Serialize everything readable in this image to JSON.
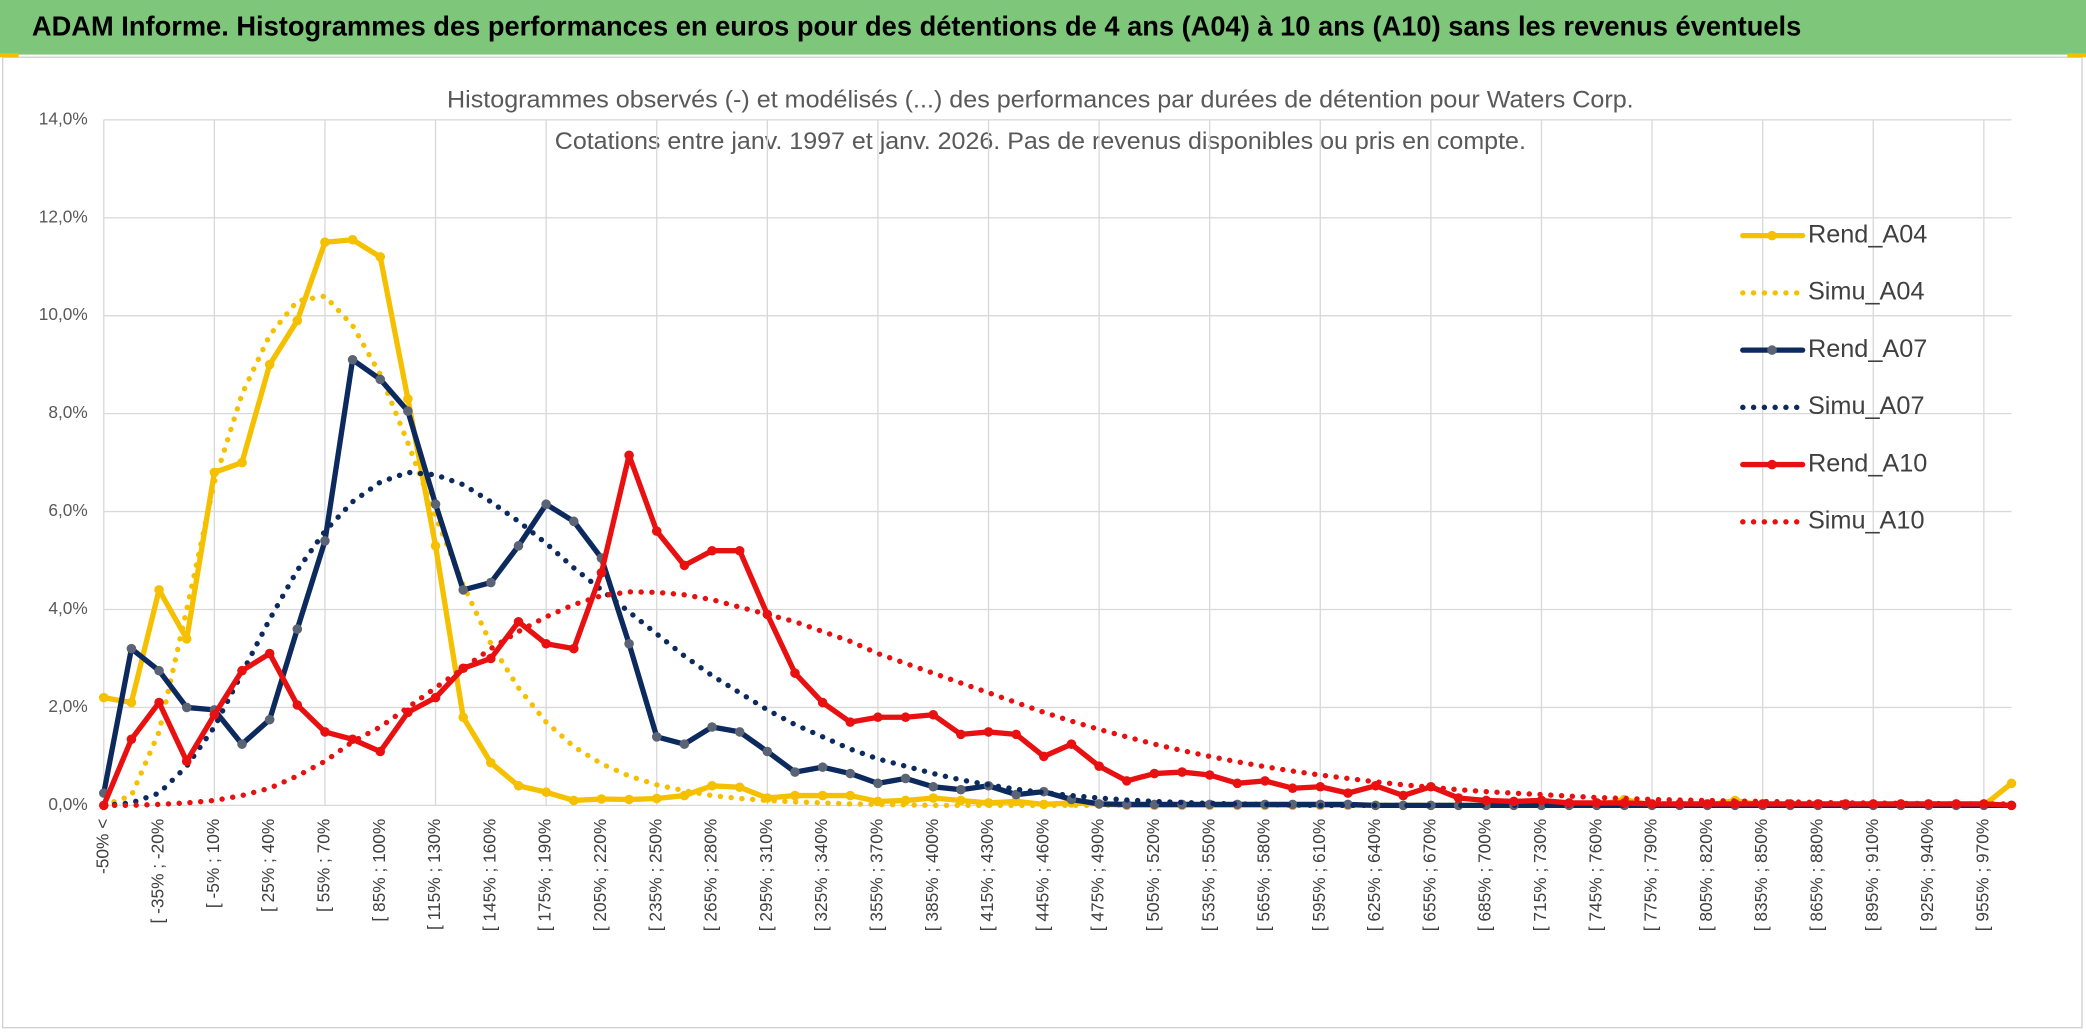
{
  "chart_data": {
    "type": "line",
    "banner": "ADAM Informe. Histogrammes des performances en euros pour des détentions de 4 ans (A04) à 10 ans (A10) sans les revenus éventuels",
    "title": "Histogrammes observés (-) et modélisés (...) des performances par durées de détention pour Waters Corp.",
    "subtitle": "Cotations entre janv. 1997 et janv. 2026. Pas de revenus disponibles ou pris en compte.",
    "categories": [
      "-50% <",
      null,
      "[ -35% ; -20%",
      null,
      "[ -5% ; 10%",
      null,
      "[ 25% ; 40%",
      null,
      "[ 55% ; 70%",
      null,
      "[ 85% ; 100%",
      null,
      "[ 115% ; 130%",
      null,
      "[ 145% ; 160%",
      null,
      "[ 175% ; 190%",
      null,
      "[ 205% ; 220%",
      null,
      "[ 235% ; 250%",
      null,
      "[ 265% ; 280%",
      null,
      "[ 295% ; 310%",
      null,
      "[ 325% ; 340%",
      null,
      "[ 355% ; 370%",
      null,
      "[ 385% ; 400%",
      null,
      "[ 415% ; 430%",
      null,
      "[ 445% ; 460%",
      null,
      "[ 475% ; 490%",
      null,
      "[ 505% ; 520%",
      null,
      "[ 535% ; 550%",
      null,
      "[ 565% ; 580%",
      null,
      "[ 595% ; 610%",
      null,
      "[ 625% ; 640%",
      null,
      "[ 655% ; 670%",
      null,
      "[ 685% ; 700%",
      null,
      "[ 715% ; 730%",
      null,
      "[ 745% ; 760%",
      null,
      "[ 775% ; 790%",
      null,
      "[ 805% ; 820%",
      null,
      "[ 835% ; 850%",
      null,
      "[ 865% ; 880%",
      null,
      "[ 895% ; 910%",
      null,
      "[ 925% ; 940%",
      null,
      "[ 955% ; 970%",
      null
    ],
    "series": [
      {
        "name": "Rend_A04",
        "color": "#f5c000",
        "line_style": "solid",
        "markers": true,
        "values": [
          2.2,
          2.1,
          4.4,
          3.4,
          6.8,
          7.0,
          9.0,
          9.9,
          11.5,
          11.55,
          11.2,
          8.3,
          5.3,
          1.8,
          0.87,
          0.4,
          0.27,
          0.1,
          0.13,
          0.12,
          0.14,
          0.2,
          0.4,
          0.37,
          0.15,
          0.2,
          0.2,
          0.2,
          0.08,
          0.1,
          0.15,
          0.1,
          0.05,
          0.08,
          0.02,
          0.05,
          0.03,
          0,
          0,
          0,
          0,
          0,
          0,
          0,
          0,
          0,
          0,
          0,
          0,
          0,
          0,
          0,
          0,
          0,
          0,
          0.12,
          0,
          0,
          0,
          0.1,
          0,
          0,
          0,
          0,
          0,
          0,
          0,
          0,
          0,
          0.45
        ]
      },
      {
        "name": "Simu_A04",
        "color": "#f5c000",
        "line_style": "dotted",
        "markers": false,
        "values": [
          0,
          0.2,
          1.5,
          4.0,
          6.6,
          8.4,
          9.6,
          10.3,
          10.4,
          9.8,
          8.8,
          7.4,
          5.9,
          4.5,
          3.3,
          2.4,
          1.7,
          1.2,
          0.85,
          0.6,
          0.42,
          0.3,
          0.2,
          0.14,
          0.1,
          0.07,
          0.05,
          0.03,
          0.02,
          0.01,
          0,
          0,
          0,
          0,
          0,
          0,
          0,
          0,
          0,
          0,
          0,
          0,
          0,
          0,
          0,
          0,
          0,
          0,
          0,
          0,
          0,
          0,
          0,
          0,
          0,
          0,
          0,
          0,
          0,
          0,
          0,
          0,
          0,
          0,
          0,
          0,
          0,
          0,
          0,
          0
        ]
      },
      {
        "name": "Rend_A07",
        "color": "#0d2a5e",
        "marker_color": "#5b6474",
        "line_style": "solid",
        "markers": true,
        "values": [
          0.25,
          3.2,
          2.75,
          2.0,
          1.95,
          1.25,
          1.75,
          3.6,
          5.4,
          9.1,
          8.7,
          8.05,
          6.15,
          4.4,
          4.55,
          5.3,
          6.15,
          5.8,
          5.05,
          3.3,
          1.4,
          1.25,
          1.6,
          1.5,
          1.1,
          0.68,
          0.78,
          0.65,
          0.45,
          0.55,
          0.38,
          0.32,
          0.4,
          0.22,
          0.28,
          0.12,
          0.03,
          0.02,
          0.02,
          0.02,
          0.02,
          0.02,
          0.02,
          0.02,
          0.02,
          0.02,
          0,
          0,
          0,
          0,
          0,
          0,
          0,
          0,
          0,
          0,
          0,
          0,
          0,
          0,
          0,
          0,
          0,
          0,
          0,
          0,
          0,
          0,
          0,
          0
        ]
      },
      {
        "name": "Simu_A07",
        "color": "#0d2a5e",
        "line_style": "dotted",
        "markers": false,
        "values": [
          0,
          0.05,
          0.25,
          0.8,
          1.6,
          2.7,
          3.8,
          4.8,
          5.6,
          6.2,
          6.6,
          6.8,
          6.75,
          6.55,
          6.2,
          5.8,
          5.35,
          4.85,
          4.4,
          3.95,
          3.5,
          3.05,
          2.65,
          2.3,
          1.95,
          1.65,
          1.4,
          1.15,
          0.95,
          0.8,
          0.65,
          0.52,
          0.42,
          0.33,
          0.26,
          0.2,
          0.15,
          0.11,
          0.08,
          0.06,
          0.04,
          0.03,
          0.02,
          0.01,
          0,
          0,
          0,
          0,
          0,
          0,
          0,
          0,
          0,
          0,
          0,
          0,
          0,
          0,
          0,
          0,
          0,
          0,
          0,
          0,
          0,
          0,
          0,
          0,
          0,
          0
        ]
      },
      {
        "name": "Rend_A10",
        "color": "#e81010",
        "line_style": "solid",
        "markers": true,
        "values": [
          0,
          1.35,
          2.1,
          0.9,
          1.85,
          2.75,
          3.1,
          2.05,
          1.5,
          1.35,
          1.1,
          1.9,
          2.2,
          2.8,
          3.0,
          3.75,
          3.3,
          3.2,
          4.75,
          7.15,
          5.6,
          4.9,
          5.2,
          5.2,
          3.9,
          2.7,
          2.1,
          1.7,
          1.8,
          1.8,
          1.85,
          1.45,
          1.5,
          1.45,
          1.0,
          1.25,
          0.8,
          0.5,
          0.65,
          0.68,
          0.62,
          0.45,
          0.5,
          0.35,
          0.38,
          0.25,
          0.4,
          0.2,
          0.38,
          0.15,
          0.1,
          0.08,
          0.1,
          0.05,
          0.05,
          0.05,
          0.03,
          0.03,
          0.03,
          0.03,
          0.03,
          0.03,
          0.03,
          0.03,
          0.03,
          0.03,
          0.03,
          0.03,
          0.03,
          0
        ]
      },
      {
        "name": "Simu_A10",
        "color": "#e81010",
        "line_style": "dotted",
        "markers": false,
        "values": [
          0,
          0,
          0.02,
          0.05,
          0.1,
          0.2,
          0.35,
          0.6,
          0.9,
          1.3,
          1.6,
          2.0,
          2.4,
          2.8,
          3.2,
          3.55,
          3.85,
          4.1,
          4.28,
          4.36,
          4.35,
          4.3,
          4.2,
          4.05,
          3.9,
          3.75,
          3.55,
          3.35,
          3.1,
          2.9,
          2.7,
          2.5,
          2.3,
          2.1,
          1.9,
          1.72,
          1.55,
          1.4,
          1.25,
          1.12,
          1.0,
          0.89,
          0.79,
          0.7,
          0.62,
          0.55,
          0.48,
          0.42,
          0.37,
          0.32,
          0.28,
          0.25,
          0.22,
          0.19,
          0.16,
          0.14,
          0.12,
          0.11,
          0.1,
          0.09,
          0.08,
          0.07,
          0.06,
          0.05,
          0.05,
          0.04,
          0.04,
          0.03,
          0.03,
          0.03
        ]
      }
    ],
    "ylim": [
      0,
      14
    ],
    "yticks": [
      {
        "value": 0,
        "label": "0,0%"
      },
      {
        "value": 2,
        "label": "2,0%"
      },
      {
        "value": 4,
        "label": "4,0%"
      },
      {
        "value": 6,
        "label": "6,0%"
      },
      {
        "value": 8,
        "label": "8,0%"
      },
      {
        "value": 10,
        "label": "10,0%"
      },
      {
        "value": 12,
        "label": "12,0%"
      },
      {
        "value": 14,
        "label": "14,0%"
      }
    ],
    "grid": true,
    "legend": "right"
  }
}
